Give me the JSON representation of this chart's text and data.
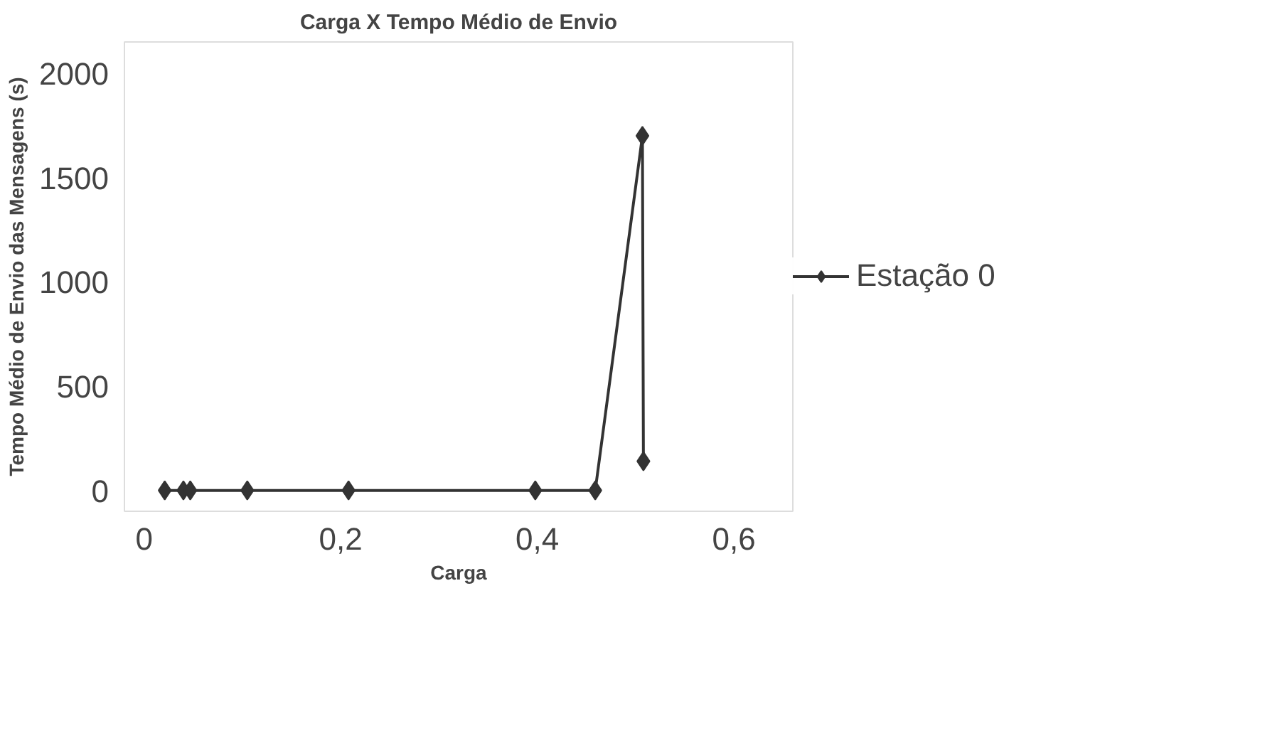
{
  "chart_data": {
    "type": "line",
    "title": "Carga X Tempo Médio de Envio",
    "xlabel": "Carga",
    "ylabel": "Tempo Médio de Envio das Mensagens (s)",
    "x": [
      0.021,
      0.04,
      0.047,
      0.105,
      0.208,
      0.398,
      0.459,
      0.507,
      0.508
    ],
    "series": [
      {
        "name": "Estação 0",
        "color": "#333333",
        "values": [
          0,
          0,
          0,
          0,
          0,
          0,
          0,
          1700,
          140
        ]
      }
    ],
    "xlim": [
      -0.02,
      0.66
    ],
    "ylim": [
      -100,
      2150
    ],
    "xticks": [
      {
        "value": 0,
        "label": "0"
      },
      {
        "value": 0.2,
        "label": "0,2"
      },
      {
        "value": 0.4,
        "label": "0,4"
      },
      {
        "value": 0.6,
        "label": "0,6"
      }
    ],
    "yticks": [
      0,
      500,
      1000,
      1500,
      2000
    ],
    "marker": "diamond",
    "legend": "right",
    "grid": false
  }
}
